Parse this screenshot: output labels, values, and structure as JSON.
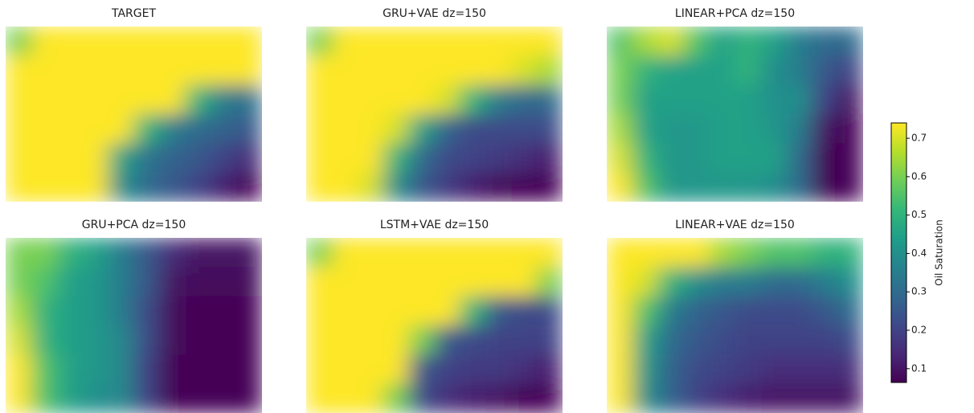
{
  "chart_data": [
    {
      "type": "heatmap",
      "title": "TARGET",
      "values": [
        [
          0.6,
          0.74,
          0.74,
          0.74,
          0.74,
          0.74,
          0.74,
          0.74,
          0.74,
          0.74
        ],
        [
          0.74,
          0.74,
          0.74,
          0.74,
          0.74,
          0.74,
          0.74,
          0.74,
          0.74,
          0.74
        ],
        [
          0.74,
          0.74,
          0.74,
          0.74,
          0.74,
          0.74,
          0.74,
          0.5,
          0.35,
          0.32
        ],
        [
          0.74,
          0.74,
          0.74,
          0.74,
          0.74,
          0.5,
          0.35,
          0.3,
          0.28,
          0.25
        ],
        [
          0.74,
          0.74,
          0.74,
          0.74,
          0.45,
          0.32,
          0.28,
          0.25,
          0.2,
          0.15
        ],
        [
          0.74,
          0.74,
          0.74,
          0.74,
          0.4,
          0.3,
          0.25,
          0.2,
          0.12,
          0.07
        ]
      ]
    },
    {
      "type": "heatmap",
      "title": "GRU+VAE dz=150",
      "values": [
        [
          0.6,
          0.74,
          0.74,
          0.74,
          0.74,
          0.74,
          0.74,
          0.74,
          0.74,
          0.74
        ],
        [
          0.74,
          0.74,
          0.74,
          0.74,
          0.74,
          0.74,
          0.74,
          0.74,
          0.7,
          0.65
        ],
        [
          0.74,
          0.74,
          0.74,
          0.74,
          0.74,
          0.7,
          0.5,
          0.35,
          0.3,
          0.3
        ],
        [
          0.74,
          0.74,
          0.74,
          0.7,
          0.45,
          0.28,
          0.22,
          0.22,
          0.22,
          0.22
        ],
        [
          0.74,
          0.74,
          0.74,
          0.5,
          0.3,
          0.22,
          0.2,
          0.18,
          0.15,
          0.12
        ],
        [
          0.74,
          0.74,
          0.7,
          0.4,
          0.25,
          0.18,
          0.12,
          0.08,
          0.07,
          0.07
        ]
      ]
    },
    {
      "type": "heatmap",
      "title": "LINEAR+PCA dz=150",
      "values": [
        [
          0.55,
          0.65,
          0.7,
          0.55,
          0.45,
          0.5,
          0.45,
          0.35,
          0.3,
          0.3
        ],
        [
          0.6,
          0.5,
          0.45,
          0.45,
          0.45,
          0.5,
          0.4,
          0.35,
          0.25,
          0.2
        ],
        [
          0.6,
          0.45,
          0.45,
          0.45,
          0.45,
          0.45,
          0.4,
          0.4,
          0.2,
          0.1
        ],
        [
          0.65,
          0.45,
          0.42,
          0.42,
          0.45,
          0.45,
          0.42,
          0.35,
          0.1,
          0.07
        ],
        [
          0.7,
          0.5,
          0.42,
          0.42,
          0.45,
          0.45,
          0.45,
          0.3,
          0.07,
          0.07
        ],
        [
          0.74,
          0.55,
          0.42,
          0.42,
          0.42,
          0.42,
          0.4,
          0.3,
          0.07,
          0.07
        ]
      ]
    },
    {
      "type": "heatmap",
      "title": "GRU+PCA dz=150",
      "values": [
        [
          0.6,
          0.6,
          0.5,
          0.45,
          0.35,
          0.25,
          0.15,
          0.1,
          0.1,
          0.1
        ],
        [
          0.6,
          0.55,
          0.45,
          0.42,
          0.35,
          0.25,
          0.1,
          0.08,
          0.08,
          0.08
        ],
        [
          0.65,
          0.5,
          0.45,
          0.42,
          0.35,
          0.22,
          0.08,
          0.07,
          0.07,
          0.07
        ],
        [
          0.7,
          0.5,
          0.45,
          0.42,
          0.38,
          0.22,
          0.08,
          0.07,
          0.07,
          0.07
        ],
        [
          0.74,
          0.55,
          0.45,
          0.42,
          0.38,
          0.2,
          0.07,
          0.07,
          0.07,
          0.07
        ],
        [
          0.74,
          0.55,
          0.45,
          0.4,
          0.38,
          0.2,
          0.07,
          0.07,
          0.07,
          0.07
        ]
      ]
    },
    {
      "type": "heatmap",
      "title": "LSTM+VAE dz=150",
      "values": [
        [
          0.6,
          0.74,
          0.74,
          0.74,
          0.74,
          0.74,
          0.74,
          0.74,
          0.74,
          0.74
        ],
        [
          0.74,
          0.74,
          0.74,
          0.74,
          0.74,
          0.74,
          0.74,
          0.74,
          0.74,
          0.6
        ],
        [
          0.74,
          0.74,
          0.74,
          0.74,
          0.74,
          0.74,
          0.5,
          0.25,
          0.22,
          0.22
        ],
        [
          0.74,
          0.74,
          0.74,
          0.74,
          0.6,
          0.25,
          0.22,
          0.2,
          0.2,
          0.2
        ],
        [
          0.74,
          0.74,
          0.74,
          0.74,
          0.25,
          0.2,
          0.18,
          0.18,
          0.15,
          0.12
        ],
        [
          0.74,
          0.74,
          0.74,
          0.6,
          0.22,
          0.15,
          0.12,
          0.1,
          0.07,
          0.07
        ]
      ]
    },
    {
      "type": "heatmap",
      "title": "LINEAR+VAE dz=150",
      "values": [
        [
          0.74,
          0.74,
          0.74,
          0.74,
          0.65,
          0.6,
          0.55,
          0.55,
          0.5,
          0.5
        ],
        [
          0.74,
          0.7,
          0.5,
          0.4,
          0.35,
          0.35,
          0.3,
          0.3,
          0.35,
          0.4
        ],
        [
          0.74,
          0.55,
          0.35,
          0.28,
          0.25,
          0.22,
          0.22,
          0.22,
          0.25,
          0.3
        ],
        [
          0.74,
          0.45,
          0.3,
          0.25,
          0.22,
          0.2,
          0.2,
          0.2,
          0.2,
          0.22
        ],
        [
          0.74,
          0.42,
          0.28,
          0.22,
          0.2,
          0.18,
          0.15,
          0.15,
          0.15,
          0.15
        ],
        [
          0.74,
          0.4,
          0.28,
          0.2,
          0.15,
          0.12,
          0.1,
          0.1,
          0.1,
          0.1
        ]
      ]
    },
    {
      "type": "colorbar",
      "label": "Oil Saturation",
      "colormap": "viridis",
      "ylim": [
        0.064,
        0.74
      ],
      "yticks": [
        0.1,
        0.2,
        0.3,
        0.4,
        0.5,
        0.6,
        0.7
      ]
    }
  ]
}
